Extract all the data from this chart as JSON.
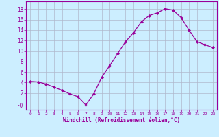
{
  "x": [
    0,
    1,
    2,
    3,
    4,
    5,
    6,
    7,
    8,
    9,
    10,
    11,
    12,
    13,
    14,
    15,
    16,
    17,
    18,
    19,
    20,
    21,
    22,
    23
  ],
  "y": [
    4.2,
    4.1,
    3.7,
    3.1,
    2.5,
    1.8,
    1.3,
    -0.3,
    1.8,
    5.0,
    7.2,
    9.5,
    11.8,
    13.5,
    15.6,
    16.8,
    17.3,
    18.1,
    17.8,
    16.4,
    14.0,
    11.8,
    11.2,
    10.7
  ],
  "line_color": "#990099",
  "marker": "D",
  "marker_size": 2.0,
  "bg_color": "#cceeff",
  "grid_color": "#b0b8cc",
  "xlabel": "Windchill (Refroidissement éolien,°C)",
  "ylabel_ticks": [
    "-0",
    "2",
    "4",
    "6",
    "8",
    "10",
    "12",
    "14",
    "16",
    "18"
  ],
  "ytick_vals": [
    -0.3,
    2,
    4,
    6,
    8,
    10,
    12,
    14,
    16,
    18
  ],
  "ylim": [
    -1.2,
    19.5
  ],
  "xlim": [
    -0.5,
    23.5
  ],
  "line_color2": "#990099",
  "tick_color": "#990099",
  "label_color": "#990099"
}
